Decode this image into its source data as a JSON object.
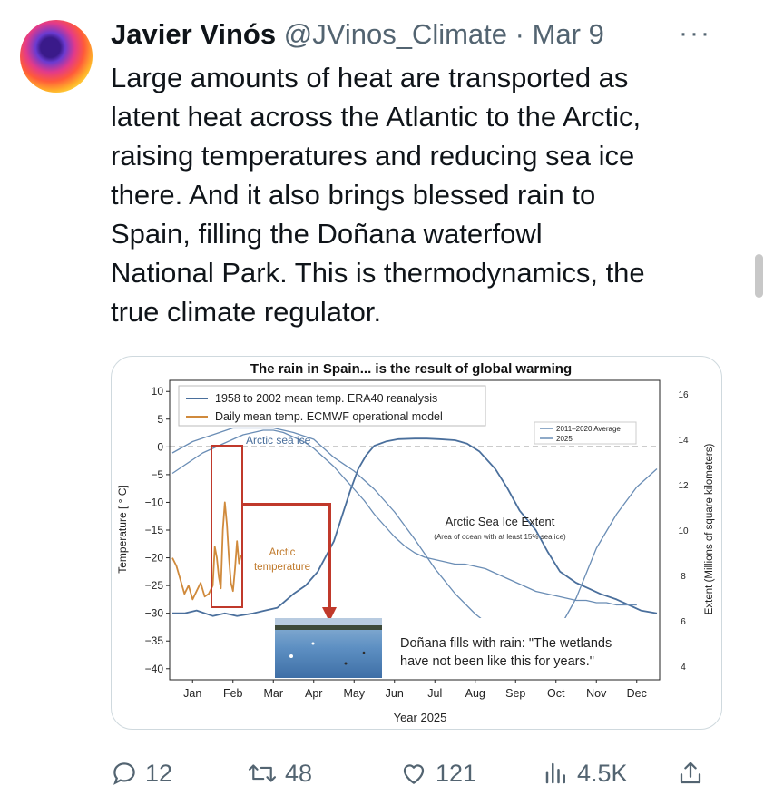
{
  "author": {
    "name": "Javier Vinós",
    "handle": "@JVinos_Climate",
    "separator": "·",
    "date": "Mar 9"
  },
  "more_icon": "···",
  "tweet_lines": [
    "Large amounts of heat are transported as",
    "latent heat across the Atlantic to the Arctic,",
    "raising temperatures and reducing sea ice",
    "there. And it also brings blessed rain to",
    "Spain, filling the Doñana waterfowl",
    "National Park. This is thermodynamics, the",
    "true climate regulator."
  ],
  "actions": {
    "replies": "12",
    "reposts": "48",
    "likes": "121",
    "views": "4.5K"
  },
  "chart_data": {
    "type": "line",
    "title": "The rain in Spain... is the result of global warming",
    "xlabel": "Year 2025",
    "ylabel_left": "Temperature [ ° C]",
    "ylabel_right": "Extent (Millions of square kilometers)",
    "months": [
      "Jan",
      "Feb",
      "Mar",
      "Apr",
      "May",
      "Jun",
      "Jul",
      "Aug",
      "Sep",
      "Oct",
      "Nov",
      "Dec"
    ],
    "ylim_left": [
      -42,
      12
    ],
    "yticks_left": [
      "10",
      "5",
      "0",
      "−5",
      "−10",
      "−15",
      "−20",
      "−25",
      "−30",
      "−35",
      "−40"
    ],
    "yticks_left_values": [
      10,
      5,
      0,
      -5,
      -10,
      -15,
      -20,
      -25,
      -30,
      -35,
      -40
    ],
    "yticks_right": [
      "16",
      "14",
      "12",
      "10",
      "8",
      "6",
      "4"
    ],
    "yticks_right_values": [
      16,
      14,
      12,
      10,
      8,
      6,
      4
    ],
    "legend_top_left": [
      "1958 to 2002 mean temp. ERA40 reanalysis",
      "Daily mean temp. ECMWF operational model"
    ],
    "legend_top_right": [
      "2011–2020 Average",
      "2025"
    ],
    "annotations": {
      "arctic_sea_ice": "Arctic sea ice",
      "arctic_temperature": [
        "Arctic",
        "temperature"
      ],
      "sea_ice_extent": "Arctic Sea Ice Extent",
      "sea_ice_extent_note": "(Area of ocean with at least 15% sea ice)",
      "donana": [
        "Doñana fills with rain: \"The wetlands",
        "have not been like this for years.\""
      ]
    },
    "colors": {
      "temp_mean": "#4a6f9c",
      "temp_daily": "#d08a3c",
      "ice": "#6a8db5",
      "arrow": "#c0392b"
    },
    "series": [
      {
        "name": "1958 to 2002 mean temp. ERA40 reanalysis",
        "x": [
          0,
          0.3,
          0.6,
          1,
          1.3,
          1.6,
          2,
          2.3,
          2.6,
          3,
          3.3,
          3.6,
          4,
          4.2,
          4.4,
          4.6,
          4.8,
          5,
          5.3,
          5.6,
          6,
          6.3,
          6.6,
          7,
          7.3,
          7.6,
          8,
          8.3,
          8.6,
          9,
          9.3,
          9.6,
          10,
          10.3,
          10.6,
          11,
          11.3,
          11.6,
          12
        ],
        "y": [
          -30,
          -30,
          -29.5,
          -30.5,
          -30,
          -30.5,
          -30,
          -29.5,
          -29,
          -26.5,
          -25,
          -22.5,
          -17,
          -12.5,
          -8,
          -4,
          -1.5,
          0.2,
          1,
          1.4,
          1.5,
          1.5,
          1.4,
          1.2,
          0.6,
          -0.8,
          -4,
          -7.5,
          -11.5,
          -15,
          -19,
          -22.5,
          -24.5,
          -25.5,
          -26.5,
          -27.5,
          -28.5,
          -29.5,
          -30
        ]
      },
      {
        "name": "Daily mean temp. ECMWF operational model",
        "x": [
          0,
          0.1,
          0.2,
          0.3,
          0.4,
          0.5,
          0.6,
          0.7,
          0.8,
          0.9,
          1,
          1.05,
          1.1,
          1.15,
          1.2,
          1.25,
          1.3,
          1.35,
          1.4,
          1.45,
          1.5,
          1.55,
          1.6,
          1.65,
          1.7
        ],
        "y": [
          -20,
          -21.5,
          -24,
          -26.5,
          -25,
          -27.5,
          -26,
          -24.5,
          -27,
          -26.5,
          -25,
          -18,
          -20,
          -23.5,
          -25.5,
          -15,
          -10,
          -14,
          -20,
          -24.5,
          -26,
          -22,
          -17,
          -21,
          -19.5
        ]
      },
      {
        "name": "2011–2020 Average",
        "x": [
          0,
          0.5,
          1,
          1.5,
          2,
          2.5,
          3,
          3.5,
          4,
          4.5,
          5,
          5.5,
          6,
          6.5,
          7,
          7.5,
          8,
          8.5,
          9,
          9.5,
          10,
          10.5,
          11,
          11.5,
          12
        ],
        "y": [
          13.4,
          13.9,
          14.2,
          14.5,
          14.5,
          14.5,
          14.3,
          14,
          13.2,
          12.6,
          11.8,
          10.8,
          9.6,
          8.3,
          7.2,
          6.3,
          5.6,
          5.1,
          4.9,
          5.4,
          7,
          9.2,
          10.7,
          11.9,
          12.7
        ]
      },
      {
        "name": "2025",
        "x": [
          0,
          0.25,
          0.5,
          0.75,
          1,
          1.25,
          1.5,
          1.75,
          2,
          2.25,
          2.5,
          2.75,
          3,
          3.25,
          3.5,
          3.75,
          4,
          4.25,
          4.5,
          4.75,
          5,
          5.25,
          5.5,
          5.75,
          6,
          6.25,
          6.5,
          6.75,
          7,
          7.25,
          7.5,
          7.75,
          8,
          8.25,
          8.5,
          8.75,
          9,
          9.25,
          9.5,
          9.75,
          10,
          10.25,
          10.5,
          10.75,
          11,
          11.25,
          11.5
        ],
        "y": [
          12.5,
          12.8,
          13.1,
          13.4,
          13.6,
          13.8,
          14.0,
          14.2,
          14.3,
          14.4,
          14.4,
          14.3,
          14.1,
          13.9,
          13.6,
          13.2,
          12.8,
          12.3,
          11.8,
          11.3,
          10.7,
          10.2,
          9.7,
          9.3,
          9.0,
          8.8,
          8.7,
          8.6,
          8.5,
          8.5,
          8.4,
          8.3,
          8.1,
          7.9,
          7.7,
          7.5,
          7.3,
          7.2,
          7.1,
          7.0,
          6.9,
          6.9,
          6.8,
          6.8,
          6.7,
          6.7,
          6.7
        ]
      }
    ]
  }
}
